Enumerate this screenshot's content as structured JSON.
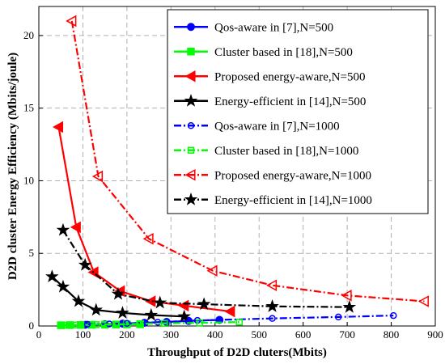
{
  "chart_data": {
    "type": "line",
    "title": "",
    "xlabel": "Throughput of D2D cluters(Mbits)",
    "ylabel": "D2D cluster Energy Efficiency (Mbits/joule)",
    "xlim": [
      0,
      900
    ],
    "ylim": [
      0,
      22
    ],
    "xticks": [
      "0",
      "100",
      "200",
      "300",
      "400",
      "500",
      "600",
      "700",
      "800",
      "900"
    ],
    "yticks": [
      "0",
      "5",
      "10",
      "15",
      "20"
    ],
    "grid": true,
    "legend_position": "top-right",
    "series": [
      {
        "name": "Qos-aware in [7],N=500",
        "color": "#0000ff",
        "line": "solid",
        "marker": "circle",
        "points": [
          [
            105,
            0.08
          ],
          [
            150,
            0.12
          ],
          [
            190,
            0.16
          ],
          [
            240,
            0.22
          ],
          [
            290,
            0.28
          ],
          [
            340,
            0.35
          ],
          [
            410,
            0.42
          ]
        ]
      },
      {
        "name": "Cluster based in [18],N=500",
        "color": "#00ff00",
        "line": "solid",
        "marker": "square",
        "points": [
          [
            50,
            0.05
          ],
          [
            70,
            0.06
          ],
          [
            95,
            0.07
          ],
          [
            120,
            0.08
          ],
          [
            150,
            0.09
          ],
          [
            175,
            0.1
          ],
          [
            200,
            0.11
          ],
          [
            230,
            0.12
          ]
        ]
      },
      {
        "name": "Proposed energy-aware,N=500",
        "color": "#ff0000",
        "line": "solid",
        "marker": "triangle-left",
        "points": [
          [
            45,
            13.7
          ],
          [
            85,
            6.8
          ],
          [
            125,
            3.7
          ],
          [
            185,
            2.4
          ],
          [
            255,
            1.7
          ],
          [
            330,
            1.4
          ],
          [
            435,
            1.0
          ]
        ]
      },
      {
        "name": "Energy-efficient in [14],N=500",
        "color": "#000000",
        "line": "solid",
        "marker": "star",
        "points": [
          [
            30,
            3.4
          ],
          [
            55,
            2.7
          ],
          [
            90,
            1.7
          ],
          [
            130,
            1.1
          ],
          [
            190,
            0.9
          ],
          [
            255,
            0.75
          ],
          [
            330,
            0.65
          ]
        ]
      },
      {
        "name": "Qos-aware in [7],N=1000",
        "color": "#0000ff",
        "line": "dashdot",
        "marker": "circle-open",
        "points": [
          [
            110,
            0.12
          ],
          [
            160,
            0.14
          ],
          [
            200,
            0.18
          ],
          [
            270,
            0.26
          ],
          [
            360,
            0.38
          ],
          [
            530,
            0.52
          ],
          [
            680,
            0.62
          ],
          [
            805,
            0.72
          ]
        ]
      },
      {
        "name": "Cluster based in [18],N=1000",
        "color": "#00ff00",
        "line": "dashdot",
        "marker": "square-open",
        "points": [
          [
            55,
            0.05
          ],
          [
            85,
            0.07
          ],
          [
            130,
            0.09
          ],
          [
            175,
            0.12
          ],
          [
            230,
            0.15
          ],
          [
            285,
            0.18
          ],
          [
            365,
            0.22
          ],
          [
            455,
            0.27
          ]
        ]
      },
      {
        "name": "Proposed energy-aware,N=1000",
        "color": "#ff0000",
        "line": "dashdot",
        "marker": "triangle-left-open",
        "points": [
          [
            75,
            21.0
          ],
          [
            135,
            10.3
          ],
          [
            250,
            6.0
          ],
          [
            395,
            3.8
          ],
          [
            530,
            2.8
          ],
          [
            700,
            2.1
          ],
          [
            875,
            1.7
          ]
        ]
      },
      {
        "name": "Energy-efficient in [14],N=1000",
        "color": "#000000",
        "line": "dashdot",
        "marker": "star",
        "points": [
          [
            55,
            6.6
          ],
          [
            105,
            4.2
          ],
          [
            180,
            2.2
          ],
          [
            275,
            1.6
          ],
          [
            375,
            1.5
          ],
          [
            530,
            1.35
          ],
          [
            705,
            1.3
          ]
        ]
      }
    ]
  }
}
